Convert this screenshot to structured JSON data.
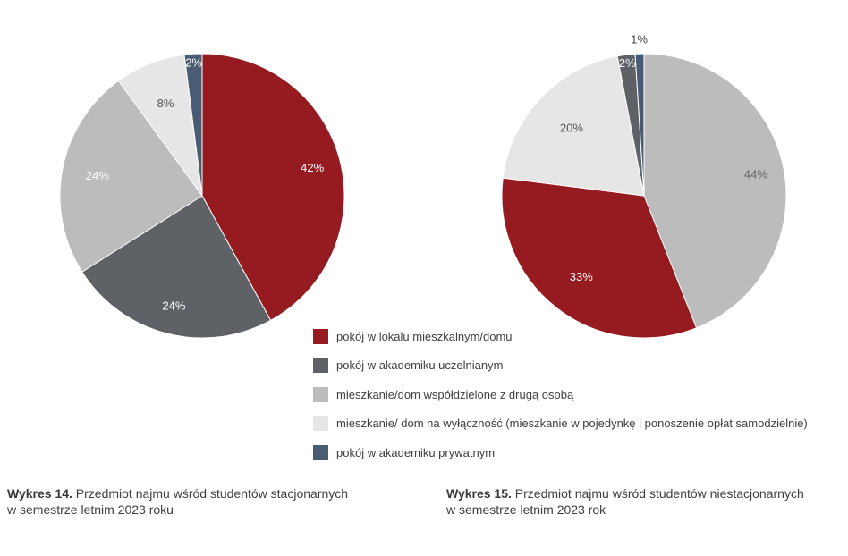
{
  "colors": {
    "pokoj_lokal": "#951b20",
    "akademik_uczelniany": "#5e6165",
    "wspoldzielone": "#bcbcbc",
    "na_wylacznosc": "#e7e6e7",
    "akademik_prywatny": "#4a5c73"
  },
  "legend": [
    {
      "label": "pokój w lokalu mieszkalnym/domu",
      "color": "#951b20"
    },
    {
      "label": "pokój w akademiku uczelnianym",
      "color": "#5e6165"
    },
    {
      "label": "mieszkanie/dom współdzielone z drugą osobą",
      "color": "#bcbcbc"
    },
    {
      "label": "mieszkanie/ dom na wyłączność (mieszkanie w pojedynkę i ponoszenie opłat samodzielnie)",
      "color": "#e7e6e7"
    },
    {
      "label": "pokój w akademiku prywatnym",
      "color": "#4a5c73"
    }
  ],
  "captions": [
    {
      "number": "Wykres 14.",
      "text": " Przedmiot najmu wśród studentów stacjonarnych",
      "line2": "w semestrze letnim 2023 roku"
    },
    {
      "number": "Wykres 15.",
      "text": " Przedmiot najmu wśród studentów niestacjonarnych",
      "line2": "w semestrze letnim 2023 rok"
    }
  ],
  "chart_data": [
    {
      "type": "pie",
      "title": "Wykres 14. Przedmiot najmu wśród studentów stacjonarnych w semestrze letnim 2023 roku",
      "slices": [
        {
          "category": "pokój w lokalu mieszkalnym/domu",
          "value": 42,
          "label": "42%",
          "color": "#951b20"
        },
        {
          "category": "pokój w akademiku uczelnianym",
          "value": 24,
          "label": "24%",
          "color": "#5e6165"
        },
        {
          "category": "mieszkanie/dom współdzielone z drugą osobą",
          "value": 24,
          "label": "24%",
          "color": "#bcbcbc"
        },
        {
          "category": "mieszkanie/ dom na wyłączność (mieszkanie w pojedynkę i ponoszenie opłat samodzielnie)",
          "value": 8,
          "label": "8%",
          "color": "#e7e6e7"
        },
        {
          "category": "pokój w akademiku prywatnym",
          "value": 2,
          "label": "2%",
          "color": "#4a5c73"
        }
      ]
    },
    {
      "type": "pie",
      "title": "Wykres 15. Przedmiot najmu wśród studentów niestacjonarnych w semestrze letnim 2023 rok",
      "slices": [
        {
          "category": "mieszkanie/dom współdzielone z drugą osobą",
          "value": 44,
          "label": "44%",
          "color": "#bcbcbc"
        },
        {
          "category": "pokój w lokalu mieszkalnym/domu",
          "value": 33,
          "label": "33%",
          "color": "#951b20"
        },
        {
          "category": "mieszkanie/ dom na wyłączność (mieszkanie w pojedynkę i ponoszenie opłat samodzielnie)",
          "value": 20,
          "label": "20%",
          "color": "#e7e6e7"
        },
        {
          "category": "pokój w akademiku uczelnianym",
          "value": 2,
          "label": "2%",
          "color": "#5e6165"
        },
        {
          "category": "pokój w akademiku prywatnym",
          "value": 1,
          "label": "1%",
          "color": "#4a5c73"
        }
      ]
    }
  ]
}
